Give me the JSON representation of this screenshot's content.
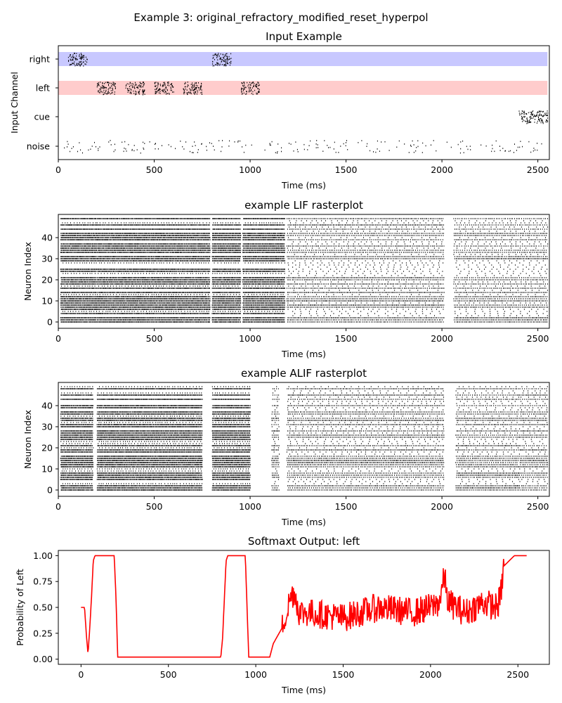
{
  "suptitle": "Example 3: original_refractory_modified_reset_hyperpol",
  "chart_data": [
    {
      "type": "raster",
      "title": "Input Example",
      "xlabel": "Time (ms)",
      "ylabel": "Input Channel",
      "xlim": [
        0,
        2560
      ],
      "xticks": [
        "0",
        "500",
        "1000",
        "1500",
        "2000",
        "2500"
      ],
      "channels": [
        {
          "name": "right",
          "band_color": "#c8c8ff",
          "band": [
            0,
            2550
          ],
          "bursts": [
            [
              50,
              150
            ],
            [
              800,
              900
            ]
          ]
        },
        {
          "name": "left",
          "band_color": "#ffcccc",
          "band": [
            0,
            2550
          ],
          "bursts": [
            [
              200,
              300
            ],
            [
              350,
              450
            ],
            [
              500,
              600
            ],
            [
              650,
              750
            ],
            [
              950,
              1050
            ]
          ]
        },
        {
          "name": "cue",
          "band_color": "",
          "band": null,
          "bursts": [
            [
              2400,
              2550
            ]
          ]
        },
        {
          "name": "noise",
          "band_color": "",
          "band": null,
          "bursts": [
            [
              0,
              2550
            ]
          ],
          "sparse": true
        }
      ]
    },
    {
      "type": "raster",
      "title": "example LIF rasterplot",
      "xlabel": "Time (ms)",
      "ylabel": "Neuron Index",
      "xlim": [
        0,
        2560
      ],
      "ylim": [
        -3,
        51
      ],
      "xticks": [
        "0",
        "500",
        "1000",
        "1500",
        "2000",
        "2500"
      ],
      "yticks": [
        "0",
        "10",
        "20",
        "30",
        "40"
      ],
      "neurons": 50,
      "active_segments": [
        [
          10,
          200
        ],
        [
          200,
          790
        ],
        [
          800,
          950
        ],
        [
          960,
          1180
        ],
        [
          1190,
          2010
        ],
        [
          2060,
          2550
        ]
      ],
      "sparse_from": 1190
    },
    {
      "type": "raster",
      "title": "example ALIF rasterplot",
      "xlabel": "Time (ms)",
      "ylabel": "Neuron Index",
      "xlim": [
        0,
        2560
      ],
      "ylim": [
        -3,
        51
      ],
      "xticks": [
        "0",
        "500",
        "1000",
        "1500",
        "2000",
        "2500"
      ],
      "yticks": [
        "0",
        "10",
        "20",
        "30",
        "40"
      ],
      "neurons": 50,
      "active_segments": [
        [
          10,
          180
        ],
        [
          200,
          750
        ],
        [
          800,
          1000
        ],
        [
          1110,
          1150
        ],
        [
          1190,
          2010
        ],
        [
          2070,
          2400
        ],
        [
          2400,
          2550
        ]
      ],
      "sparse_from": 1110
    },
    {
      "type": "line",
      "title": "Softmaxt Output: left",
      "xlabel": "Time (ms)",
      "ylabel": "Probability of Left",
      "xlim": [
        -130,
        2680
      ],
      "ylim": [
        -0.05,
        1.05
      ],
      "xticks": [
        0,
        500,
        1000,
        1500,
        2000,
        2500
      ],
      "yticks": [
        "0.00",
        "0.25",
        "0.50",
        "0.75",
        "1.00"
      ],
      "ytick_values": [
        0,
        0.25,
        0.5,
        0.75,
        1.0
      ],
      "series": [
        {
          "color": "#ff0000",
          "anchors": [
            [
              0,
              0.5
            ],
            [
              20,
              0.5
            ],
            [
              30,
              0.25
            ],
            [
              40,
              0.05
            ],
            [
              50,
              0.3
            ],
            [
              60,
              0.6
            ],
            [
              70,
              0.95
            ],
            [
              80,
              1.0
            ],
            [
              190,
              1.0
            ],
            [
              200,
              0.6
            ],
            [
              210,
              0.02
            ],
            [
              800,
              0.02
            ],
            [
              810,
              0.2
            ],
            [
              830,
              0.95
            ],
            [
              840,
              1.0
            ],
            [
              940,
              1.0
            ],
            [
              950,
              0.5
            ],
            [
              960,
              0.02
            ],
            [
              1080,
              0.02
            ],
            [
              1100,
              0.15
            ],
            [
              1150,
              0.3
            ],
            [
              1200,
              0.6
            ],
            [
              1220,
              0.65
            ],
            [
              1250,
              0.45
            ],
            [
              1300,
              0.45
            ],
            [
              1500,
              0.4
            ],
            [
              1700,
              0.5
            ],
            [
              1900,
              0.45
            ],
            [
              2000,
              0.5
            ],
            [
              2050,
              0.55
            ],
            [
              2080,
              0.8
            ],
            [
              2100,
              0.55
            ],
            [
              2200,
              0.45
            ],
            [
              2300,
              0.55
            ],
            [
              2380,
              0.5
            ],
            [
              2400,
              0.6
            ],
            [
              2420,
              0.9
            ],
            [
              2450,
              0.95
            ],
            [
              2480,
              1.0
            ],
            [
              2550,
              1.0
            ]
          ]
        }
      ]
    }
  ]
}
